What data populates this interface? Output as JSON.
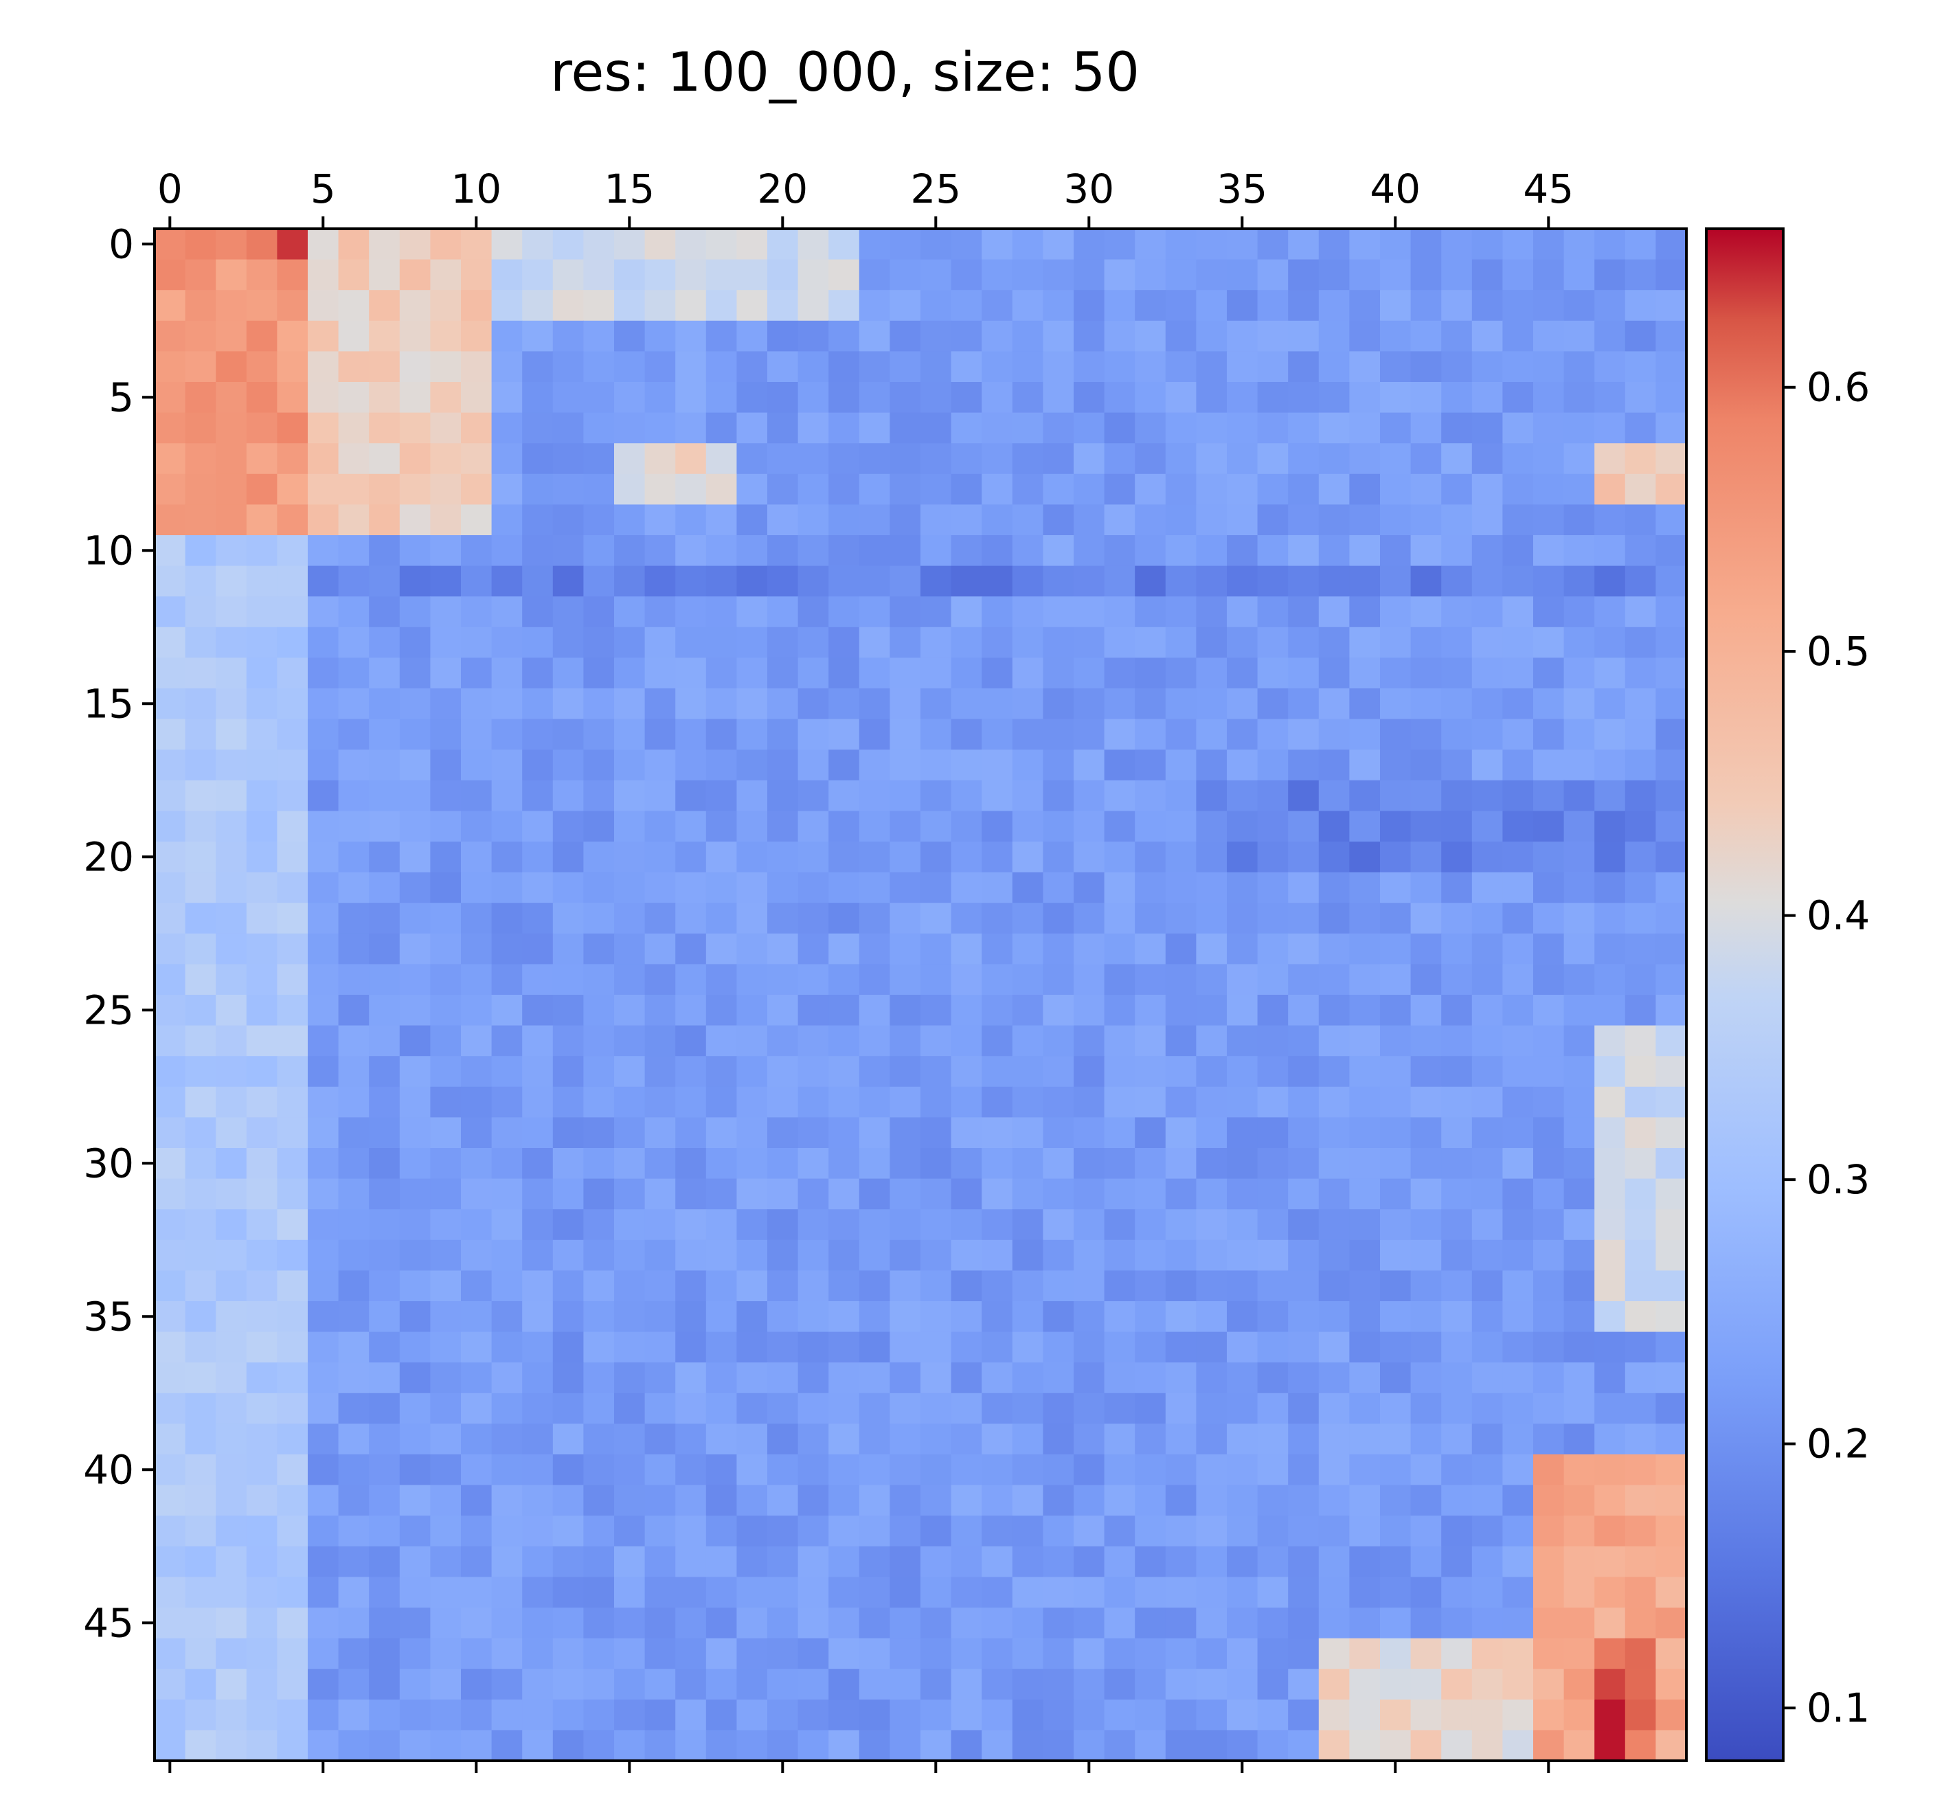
{
  "chart_data": {
    "type": "heatmap",
    "title": "res: 100_000, size: 50",
    "xlabel": "",
    "ylabel": "",
    "size": 50,
    "colormap": "coolwarm",
    "vmin": 0.08,
    "vmax": 0.66,
    "x_ticks": [
      0,
      5,
      10,
      15,
      20,
      25,
      30,
      35,
      40,
      45
    ],
    "x_tick_labels": [
      "0",
      "5",
      "10",
      "15",
      "20",
      "25",
      "30",
      "35",
      "40",
      "45"
    ],
    "y_ticks": [
      0,
      5,
      10,
      15,
      20,
      25,
      30,
      35,
      40,
      45
    ],
    "y_tick_labels": [
      "0",
      "5",
      "10",
      "15",
      "20",
      "25",
      "30",
      "35",
      "40",
      "45"
    ],
    "colorbar_ticks": [
      0.1,
      0.2,
      0.3,
      0.4,
      0.5,
      0.6
    ],
    "colorbar_tick_labels": [
      "0.1",
      "0.2",
      "0.3",
      "0.4",
      "0.5",
      "0.6"
    ],
    "grid": false,
    "note_on_values": "approximate block structure; value at row i, col j",
    "blocks": [
      {
        "rows": [
          0,
          9
        ],
        "cols": [
          0,
          4
        ],
        "value": 0.55
      },
      {
        "rows": [
          0,
          0
        ],
        "cols": [
          0,
          3
        ],
        "value": 0.61
      },
      {
        "rows": [
          0,
          0
        ],
        "cols": [
          4,
          4
        ],
        "value": 0.66
      },
      {
        "rows": [
          0,
          9
        ],
        "cols": [
          5,
          10
        ],
        "value": 0.44
      },
      {
        "rows": [
          0,
          2
        ],
        "cols": [
          11,
          22
        ],
        "value": 0.38
      },
      {
        "rows": [
          7,
          8
        ],
        "cols": [
          15,
          18
        ],
        "value": 0.42
      },
      {
        "rows": [
          10,
          49
        ],
        "cols": [
          0,
          4
        ],
        "value": 0.33
      },
      {
        "rows": [
          10,
          49
        ],
        "cols": [
          5,
          44
        ],
        "value": 0.22
      },
      {
        "rows": [
          11,
          11
        ],
        "cols": [
          5,
          49
        ],
        "value": 0.17
      },
      {
        "rows": [
          18,
          20
        ],
        "cols": [
          34,
          49
        ],
        "value": 0.17
      },
      {
        "rows": [
          40,
          49
        ],
        "cols": [
          45,
          49
        ],
        "value": 0.52
      },
      {
        "rows": [
          46,
          49
        ],
        "cols": [
          47,
          48
        ],
        "value": 0.62
      },
      {
        "rows": [
          46,
          49
        ],
        "cols": [
          38,
          44
        ],
        "value": 0.42
      },
      {
        "rows": [
          7,
          8
        ],
        "cols": [
          47,
          49
        ],
        "value": 0.44
      },
      {
        "rows": [
          26,
          35
        ],
        "cols": [
          47,
          49
        ],
        "value": 0.38
      }
    ]
  }
}
